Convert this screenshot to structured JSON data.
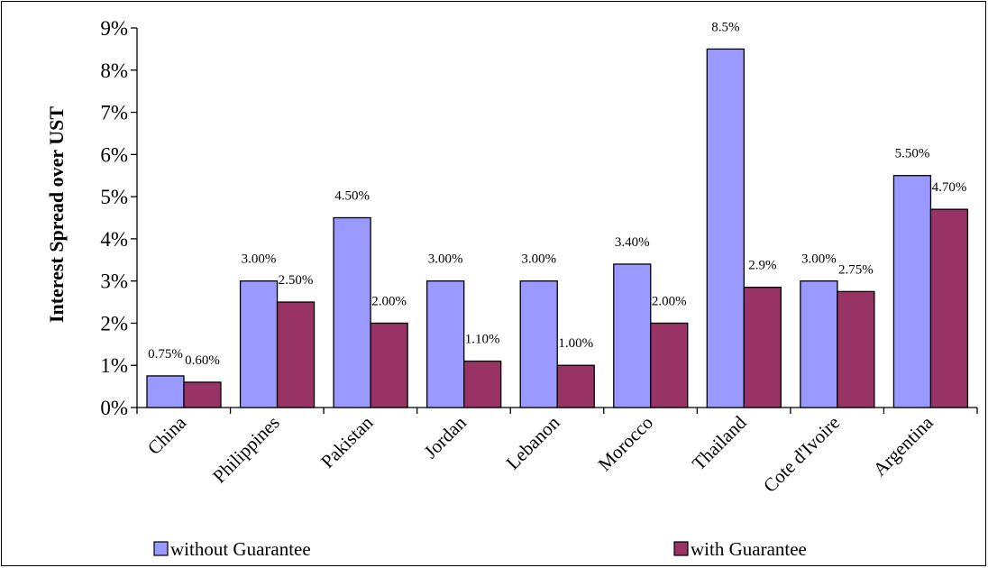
{
  "chart_data": {
    "type": "bar",
    "title": "",
    "xlabel": "",
    "ylabel": "Interest Spread over UST",
    "ylim": [
      0,
      9
    ],
    "yticks": [
      "0%",
      "1%",
      "2%",
      "3%",
      "4%",
      "5%",
      "6%",
      "7%",
      "8%",
      "9%"
    ],
    "grid": false,
    "legend_position": "bottom",
    "categories": [
      "China",
      "Philippines",
      "Pakistan",
      "Jordan",
      "Lebanon",
      "Morocco",
      "Thailand",
      "Cote d'Ivoire",
      "Argentina"
    ],
    "series": [
      {
        "name": "without Guarantee",
        "color": "#9999ff",
        "values": [
          0.75,
          3.0,
          4.5,
          3.0,
          3.0,
          3.4,
          8.5,
          3.0,
          5.5
        ],
        "labels": [
          "0.75%",
          "3.00%",
          "4.50%",
          "3.00%",
          "3.00%",
          "3.40%",
          "8.5%",
          "3.00%",
          "5.50%"
        ]
      },
      {
        "name": "with Guarantee",
        "color": "#993366",
        "values": [
          0.6,
          2.5,
          2.0,
          1.1,
          1.0,
          2.0,
          2.85,
          2.75,
          4.7
        ],
        "labels": [
          "0.60%",
          "2.50%",
          "2.00%",
          "1.10%",
          "1.00%",
          "2.00%",
          "2.9%",
          "2.75%",
          "4.70%"
        ]
      }
    ]
  }
}
